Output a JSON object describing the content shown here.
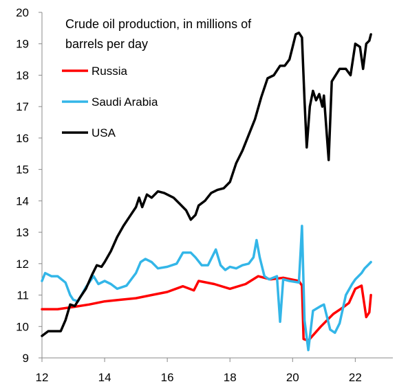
{
  "chart_data": {
    "type": "line",
    "title": "Crude oil production, in millions of barrels per day",
    "title_lines": [
      "Crude oil production, in millions of",
      "barrels per day"
    ],
    "xlabel": "",
    "ylabel": "",
    "xlim": [
      2012,
      2023.2
    ],
    "ylim": [
      9,
      20
    ],
    "x_ticks": [
      12,
      14,
      16,
      18,
      20,
      22
    ],
    "y_ticks": [
      9,
      10,
      11,
      12,
      13,
      14,
      15,
      16,
      17,
      18,
      19,
      20
    ],
    "grid": false,
    "legend_position": "top-left",
    "series": [
      {
        "name": "Russia",
        "color": "#ff0000",
        "points": [
          [
            2012.0,
            10.55
          ],
          [
            2012.5,
            10.55
          ],
          [
            2013.0,
            10.62
          ],
          [
            2013.5,
            10.7
          ],
          [
            2014.0,
            10.8
          ],
          [
            2014.5,
            10.85
          ],
          [
            2015.0,
            10.9
          ],
          [
            2015.5,
            11.0
          ],
          [
            2016.0,
            11.1
          ],
          [
            2016.5,
            11.28
          ],
          [
            2016.85,
            11.15
          ],
          [
            2017.0,
            11.45
          ],
          [
            2017.5,
            11.35
          ],
          [
            2018.0,
            11.2
          ],
          [
            2018.5,
            11.35
          ],
          [
            2018.9,
            11.6
          ],
          [
            2019.3,
            11.5
          ],
          [
            2019.7,
            11.55
          ],
          [
            2020.2,
            11.45
          ],
          [
            2020.3,
            11.3
          ],
          [
            2020.35,
            9.6
          ],
          [
            2020.5,
            9.55
          ],
          [
            2020.9,
            10.0
          ],
          [
            2021.3,
            10.4
          ],
          [
            2021.6,
            10.6
          ],
          [
            2021.8,
            10.75
          ],
          [
            2022.0,
            11.2
          ],
          [
            2022.2,
            11.3
          ],
          [
            2022.35,
            10.3
          ],
          [
            2022.45,
            10.45
          ],
          [
            2022.5,
            11.0
          ]
        ]
      },
      {
        "name": "Saudi Arabia",
        "color": "#33b6e8",
        "points": [
          [
            2012.0,
            11.45
          ],
          [
            2012.1,
            11.7
          ],
          [
            2012.3,
            11.6
          ],
          [
            2012.5,
            11.6
          ],
          [
            2012.75,
            11.4
          ],
          [
            2012.9,
            11.0
          ],
          [
            2013.0,
            10.85
          ],
          [
            2013.15,
            10.8
          ],
          [
            2013.4,
            11.25
          ],
          [
            2013.65,
            11.6
          ],
          [
            2013.8,
            11.35
          ],
          [
            2014.0,
            11.45
          ],
          [
            2014.2,
            11.35
          ],
          [
            2014.4,
            11.2
          ],
          [
            2014.7,
            11.3
          ],
          [
            2015.0,
            11.7
          ],
          [
            2015.15,
            12.05
          ],
          [
            2015.3,
            12.15
          ],
          [
            2015.5,
            12.05
          ],
          [
            2015.7,
            11.85
          ],
          [
            2016.0,
            11.9
          ],
          [
            2016.3,
            12.0
          ],
          [
            2016.5,
            12.35
          ],
          [
            2016.75,
            12.35
          ],
          [
            2016.9,
            12.2
          ],
          [
            2017.1,
            11.95
          ],
          [
            2017.3,
            11.95
          ],
          [
            2017.55,
            12.45
          ],
          [
            2017.7,
            11.95
          ],
          [
            2017.85,
            11.8
          ],
          [
            2018.0,
            11.9
          ],
          [
            2018.2,
            11.85
          ],
          [
            2018.4,
            11.95
          ],
          [
            2018.6,
            12.0
          ],
          [
            2018.75,
            12.2
          ],
          [
            2018.85,
            12.75
          ],
          [
            2018.95,
            12.2
          ],
          [
            2019.1,
            11.6
          ],
          [
            2019.25,
            11.5
          ],
          [
            2019.5,
            11.6
          ],
          [
            2019.6,
            10.15
          ],
          [
            2019.7,
            11.5
          ],
          [
            2019.9,
            11.45
          ],
          [
            2020.2,
            11.4
          ],
          [
            2020.25,
            12.3
          ],
          [
            2020.3,
            13.2
          ],
          [
            2020.38,
            10.2
          ],
          [
            2020.5,
            9.25
          ],
          [
            2020.65,
            10.5
          ],
          [
            2020.9,
            10.65
          ],
          [
            2021.0,
            10.7
          ],
          [
            2021.2,
            9.9
          ],
          [
            2021.35,
            9.8
          ],
          [
            2021.5,
            10.1
          ],
          [
            2021.7,
            11.0
          ],
          [
            2021.9,
            11.35
          ],
          [
            2022.0,
            11.5
          ],
          [
            2022.2,
            11.7
          ],
          [
            2022.3,
            11.85
          ],
          [
            2022.4,
            11.95
          ],
          [
            2022.5,
            12.05
          ]
        ]
      },
      {
        "name": "USA",
        "color": "#000000",
        "points": [
          [
            2012.0,
            9.7
          ],
          [
            2012.2,
            9.85
          ],
          [
            2012.4,
            9.85
          ],
          [
            2012.6,
            9.85
          ],
          [
            2012.75,
            10.2
          ],
          [
            2012.9,
            10.7
          ],
          [
            2013.05,
            10.65
          ],
          [
            2013.2,
            10.9
          ],
          [
            2013.4,
            11.2
          ],
          [
            2013.6,
            11.65
          ],
          [
            2013.75,
            11.95
          ],
          [
            2013.9,
            11.9
          ],
          [
            2014.0,
            12.05
          ],
          [
            2014.2,
            12.4
          ],
          [
            2014.4,
            12.85
          ],
          [
            2014.6,
            13.2
          ],
          [
            2014.8,
            13.5
          ],
          [
            2015.0,
            13.8
          ],
          [
            2015.1,
            14.1
          ],
          [
            2015.2,
            13.8
          ],
          [
            2015.35,
            14.2
          ],
          [
            2015.5,
            14.1
          ],
          [
            2015.7,
            14.3
          ],
          [
            2015.9,
            14.25
          ],
          [
            2016.0,
            14.2
          ],
          [
            2016.2,
            14.1
          ],
          [
            2016.4,
            13.9
          ],
          [
            2016.6,
            13.7
          ],
          [
            2016.75,
            13.4
          ],
          [
            2016.9,
            13.55
          ],
          [
            2017.0,
            13.85
          ],
          [
            2017.2,
            14.0
          ],
          [
            2017.4,
            14.25
          ],
          [
            2017.6,
            14.35
          ],
          [
            2017.8,
            14.4
          ],
          [
            2018.0,
            14.6
          ],
          [
            2018.2,
            15.2
          ],
          [
            2018.4,
            15.6
          ],
          [
            2018.6,
            16.1
          ],
          [
            2018.8,
            16.6
          ],
          [
            2019.0,
            17.3
          ],
          [
            2019.2,
            17.9
          ],
          [
            2019.4,
            18.0
          ],
          [
            2019.6,
            18.3
          ],
          [
            2019.75,
            18.3
          ],
          [
            2019.9,
            18.5
          ],
          [
            2020.0,
            18.9
          ],
          [
            2020.1,
            19.3
          ],
          [
            2020.2,
            19.35
          ],
          [
            2020.3,
            19.2
          ],
          [
            2020.38,
            17.2
          ],
          [
            2020.45,
            15.7
          ],
          [
            2020.55,
            17.0
          ],
          [
            2020.65,
            17.5
          ],
          [
            2020.75,
            17.2
          ],
          [
            2020.85,
            17.4
          ],
          [
            2020.95,
            17.0
          ],
          [
            2021.0,
            17.35
          ],
          [
            2021.15,
            15.3
          ],
          [
            2021.25,
            17.8
          ],
          [
            2021.5,
            18.2
          ],
          [
            2021.7,
            18.2
          ],
          [
            2021.85,
            18.0
          ],
          [
            2022.0,
            19.0
          ],
          [
            2022.15,
            18.9
          ],
          [
            2022.25,
            18.2
          ],
          [
            2022.35,
            19.0
          ],
          [
            2022.45,
            19.1
          ],
          [
            2022.5,
            19.3
          ]
        ]
      }
    ]
  }
}
